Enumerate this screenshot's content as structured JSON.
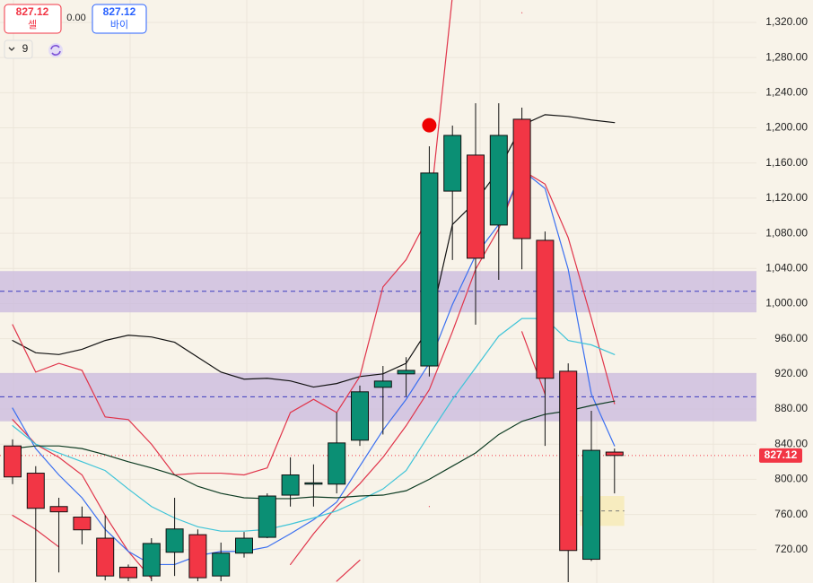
{
  "toolbar": {
    "sell": "827.12",
    "sell_label": "셀",
    "spread": "0.00",
    "buy": "827.12",
    "buy_label": "바이",
    "interval": "9"
  },
  "chart_data": {
    "type": "candlestick",
    "ylim": [
      682,
      1345.5
    ],
    "yticks": [
      {
        "value": 720,
        "label": "720.00"
      },
      {
        "value": 760,
        "label": "760.00"
      },
      {
        "value": 800,
        "label": "800.00"
      },
      {
        "value": 840,
        "label": "840.00"
      },
      {
        "value": 880,
        "label": "880.00"
      },
      {
        "value": 920,
        "label": "920.00"
      },
      {
        "value": 960,
        "label": "960.00"
      },
      {
        "value": 1000,
        "label": "1,000.00"
      },
      {
        "value": 1040,
        "label": "1,040.00"
      },
      {
        "value": 1080,
        "label": "1,080.00"
      },
      {
        "value": 1120,
        "label": "1,120.00"
      },
      {
        "value": 1160,
        "label": "1,160.00"
      },
      {
        "value": 1200,
        "label": "1,200.00"
      },
      {
        "value": 1240,
        "label": "1,240.00"
      },
      {
        "value": 1280,
        "label": "1,280.00"
      },
      {
        "value": 1320,
        "label": "1,320.00"
      }
    ],
    "grid": true,
    "up_color": "#0b8f74",
    "down_color": "#f23645",
    "open": [
      838,
      807,
      769,
      757,
      733,
      700,
      690,
      717,
      737,
      690,
      716,
      734,
      782,
      795,
      794.5,
      844.5,
      904.7,
      920,
      929,
      1128,
      1169,
      1089.4,
      1209.8,
      1072,
      923,
      709,
      831
    ],
    "high": [
      845.5,
      815,
      779,
      769,
      759,
      703,
      733,
      779,
      743,
      728,
      740,
      784,
      825,
      817,
      876,
      906.7,
      929,
      939,
      1179,
      1202.6,
      1228,
      1228,
      1223,
      1082,
      932,
      878,
      835
    ],
    "low": [
      794.5,
      683,
      694,
      726,
      685,
      684,
      684,
      690,
      684,
      684,
      711,
      733,
      769,
      769,
      784,
      838,
      851,
      894.5,
      917,
      1049.6,
      976,
      1027,
      1039,
      838,
      683,
      707,
      784
    ],
    "close": [
      802.7,
      767,
      763,
      742.5,
      690,
      688,
      727,
      743.5,
      688,
      716,
      733,
      781,
      805,
      796,
      841.4,
      899.6,
      911.8,
      924,
      1148.6,
      1191.4,
      1051.6,
      1191.4,
      1074,
      915,
      719,
      833,
      827.12
    ],
    "lines": [
      {
        "color": "#111111",
        "values": [
          958,
          944,
          942,
          948,
          958,
          964,
          962,
          956,
          939,
          922,
          914,
          915,
          912,
          905,
          909,
          917,
          920,
          932,
          973,
          1090,
          1116,
          1152,
          1203,
          1215,
          1213,
          1209,
          1206
        ]
      },
      {
        "color": "#e0344a",
        "values": [
          976,
          922,
          932,
          924,
          871,
          868,
          840,
          805,
          807,
          807,
          805,
          813,
          876,
          891,
          876,
          917,
          1019,
          1050,
          1101,
          1350,
          null,
          null,
          1331,
          null,
          null,
          null,
          null
        ]
      },
      {
        "color": "#e0344a",
        "values": [
          868,
          840,
          825,
          805,
          759,
          718,
          687,
          null,
          null,
          null,
          null,
          null,
          703,
          738,
          769,
          795,
          825,
          861,
          902,
          968,
          1039,
          1085,
          1152,
          1136,
          1075,
          983,
          886
        ]
      },
      {
        "color": "#e0344a",
        "values": [
          759,
          743,
          723,
          null,
          null,
          null,
          null,
          null,
          null,
          null,
          null,
          null,
          null,
          null,
          684,
          708,
          null,
          null,
          769,
          null,
          null,
          null,
          968,
          897,
          null,
          null,
          null
        ]
      },
      {
        "color": "#3a6ff0",
        "values": [
          881,
          835,
          805,
          779,
          743,
          718,
          703,
          703,
          713,
          718,
          718,
          723,
          738,
          754,
          774,
          815,
          856,
          891,
          932,
          999,
          1055,
          1090,
          1152,
          1131,
          1039,
          897,
          838
        ]
      },
      {
        "color": "#3fc4d8",
        "values": [
          861,
          840,
          830,
          820,
          810,
          789,
          769,
          756,
          746,
          741,
          741,
          743,
          749,
          756,
          764,
          776,
          789,
          810,
          851,
          891,
          927,
          963,
          983,
          983,
          958,
          953,
          942
        ]
      },
      {
        "color": "#0d3b22",
        "values": [
          835,
          838,
          838,
          835,
          828,
          820,
          813,
          805,
          792,
          784,
          779,
          778,
          778,
          780,
          779,
          781,
          782,
          787,
          800,
          815,
          830,
          851,
          866,
          874,
          878,
          884,
          889
        ]
      }
    ],
    "zones": [
      {
        "top": 1037,
        "bottom": 990,
        "mid": 1014,
        "color": "#c9b8dd"
      },
      {
        "top": 921,
        "bottom": 866,
        "mid": 894,
        "color": "#c9b8dd"
      }
    ],
    "target_box": {
      "first": 25,
      "last": 27,
      "top": 781,
      "bottom": 747,
      "mid": 764,
      "color": "#f7ecbf"
    },
    "marker": {
      "index": 18,
      "value": 1203,
      "color": "#ee0000"
    }
  }
}
